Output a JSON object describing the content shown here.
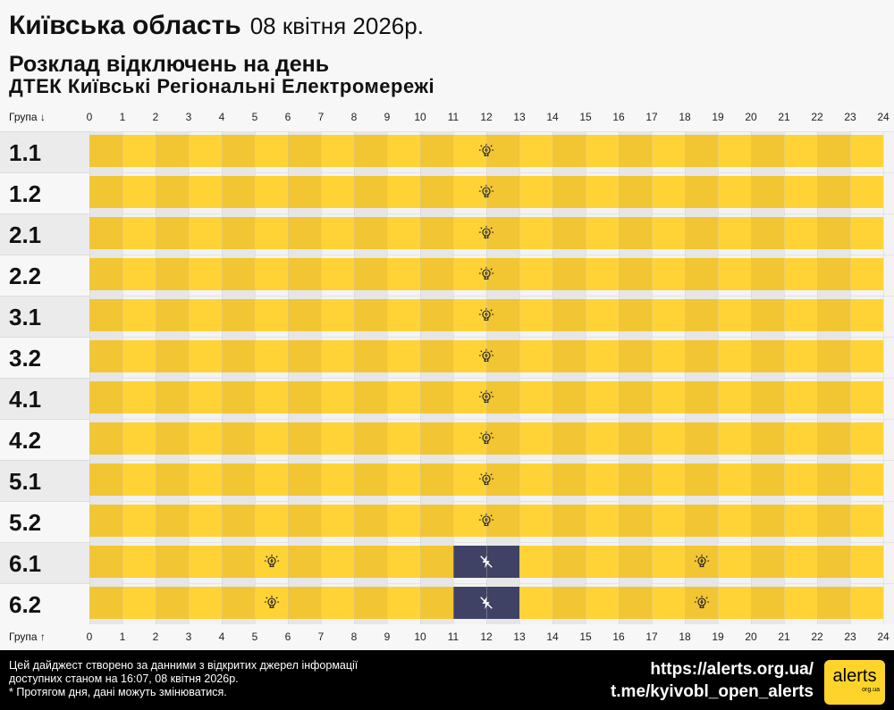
{
  "header": {
    "region": "Київська область",
    "date": "08 квітня 2026р.",
    "subtitle": "Розклад відключень на день",
    "provider": "ДТЕК Київські Регіональні Електромережі"
  },
  "axis": {
    "top_label": "Група ↓",
    "bottom_label": "Група ↑",
    "hours": [
      "0",
      "1",
      "2",
      "3",
      "4",
      "5",
      "6",
      "7",
      "8",
      "9",
      "10",
      "11",
      "12",
      "13",
      "14",
      "15",
      "16",
      "17",
      "18",
      "19",
      "20",
      "21",
      "22",
      "23",
      "24"
    ]
  },
  "colors": {
    "power_on_even": "#f2c533",
    "power_on_odd": "#ffd336",
    "power_off": "#3f4264"
  },
  "groups": [
    {
      "name": "1.1",
      "outages": []
    },
    {
      "name": "1.2",
      "outages": []
    },
    {
      "name": "2.1",
      "outages": []
    },
    {
      "name": "2.2",
      "outages": []
    },
    {
      "name": "3.1",
      "outages": []
    },
    {
      "name": "3.2",
      "outages": []
    },
    {
      "name": "4.1",
      "outages": []
    },
    {
      "name": "4.2",
      "outages": []
    },
    {
      "name": "5.1",
      "outages": []
    },
    {
      "name": "5.2",
      "outages": []
    },
    {
      "name": "6.1",
      "outages": [
        [
          11,
          13
        ]
      ]
    },
    {
      "name": "6.2",
      "outages": [
        [
          11,
          13
        ]
      ]
    }
  ],
  "icons": {
    "on": "lightbulb-icon",
    "off": "power-off-icon"
  },
  "footer": {
    "note_line1": "Цей дайджест створено за данними з відкритих джерел інформації",
    "note_line2": "доступних станом на 16:07, 08 квітня 2026р.",
    "note_line3": "* Протягом дня, дані можуть змінюватися.",
    "link1": "https://alerts.org.ua/",
    "link2": "t.me/kyivobl_open_alerts",
    "logo_text": "alerts",
    "logo_sub": "org.ua"
  }
}
